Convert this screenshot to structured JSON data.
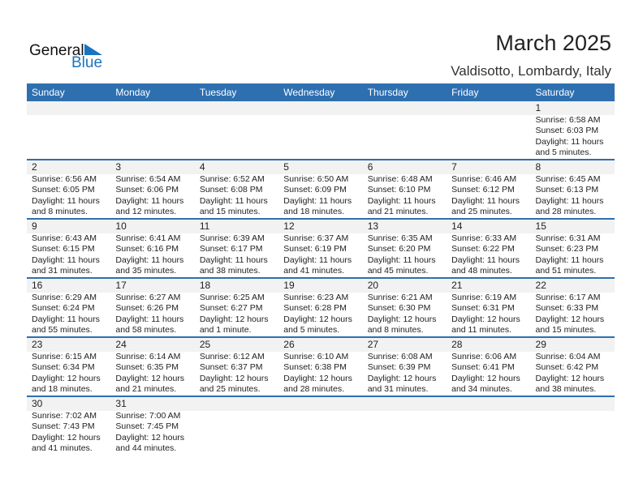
{
  "logo": {
    "text1": "General",
    "text2": "Blue"
  },
  "title": "March 2025",
  "location": "Valdisotto, Lombardy, Italy",
  "colors": {
    "header": "#2e6fb0",
    "band": "#f2f2f2"
  },
  "days": [
    "Sunday",
    "Monday",
    "Tuesday",
    "Wednesday",
    "Thursday",
    "Friday",
    "Saturday"
  ],
  "weeks": [
    [
      null,
      null,
      null,
      null,
      null,
      null,
      {
        "day": "1",
        "sunrise": "Sunrise: 6:58 AM",
        "sunset": "Sunset: 6:03 PM",
        "daylight1": "Daylight: 11 hours",
        "daylight2": "and 5 minutes."
      }
    ],
    [
      {
        "day": "2",
        "sunrise": "Sunrise: 6:56 AM",
        "sunset": "Sunset: 6:05 PM",
        "daylight1": "Daylight: 11 hours",
        "daylight2": "and 8 minutes."
      },
      {
        "day": "3",
        "sunrise": "Sunrise: 6:54 AM",
        "sunset": "Sunset: 6:06 PM",
        "daylight1": "Daylight: 11 hours",
        "daylight2": "and 12 minutes."
      },
      {
        "day": "4",
        "sunrise": "Sunrise: 6:52 AM",
        "sunset": "Sunset: 6:08 PM",
        "daylight1": "Daylight: 11 hours",
        "daylight2": "and 15 minutes."
      },
      {
        "day": "5",
        "sunrise": "Sunrise: 6:50 AM",
        "sunset": "Sunset: 6:09 PM",
        "daylight1": "Daylight: 11 hours",
        "daylight2": "and 18 minutes."
      },
      {
        "day": "6",
        "sunrise": "Sunrise: 6:48 AM",
        "sunset": "Sunset: 6:10 PM",
        "daylight1": "Daylight: 11 hours",
        "daylight2": "and 21 minutes."
      },
      {
        "day": "7",
        "sunrise": "Sunrise: 6:46 AM",
        "sunset": "Sunset: 6:12 PM",
        "daylight1": "Daylight: 11 hours",
        "daylight2": "and 25 minutes."
      },
      {
        "day": "8",
        "sunrise": "Sunrise: 6:45 AM",
        "sunset": "Sunset: 6:13 PM",
        "daylight1": "Daylight: 11 hours",
        "daylight2": "and 28 minutes."
      }
    ],
    [
      {
        "day": "9",
        "sunrise": "Sunrise: 6:43 AM",
        "sunset": "Sunset: 6:15 PM",
        "daylight1": "Daylight: 11 hours",
        "daylight2": "and 31 minutes."
      },
      {
        "day": "10",
        "sunrise": "Sunrise: 6:41 AM",
        "sunset": "Sunset: 6:16 PM",
        "daylight1": "Daylight: 11 hours",
        "daylight2": "and 35 minutes."
      },
      {
        "day": "11",
        "sunrise": "Sunrise: 6:39 AM",
        "sunset": "Sunset: 6:17 PM",
        "daylight1": "Daylight: 11 hours",
        "daylight2": "and 38 minutes."
      },
      {
        "day": "12",
        "sunrise": "Sunrise: 6:37 AM",
        "sunset": "Sunset: 6:19 PM",
        "daylight1": "Daylight: 11 hours",
        "daylight2": "and 41 minutes."
      },
      {
        "day": "13",
        "sunrise": "Sunrise: 6:35 AM",
        "sunset": "Sunset: 6:20 PM",
        "daylight1": "Daylight: 11 hours",
        "daylight2": "and 45 minutes."
      },
      {
        "day": "14",
        "sunrise": "Sunrise: 6:33 AM",
        "sunset": "Sunset: 6:22 PM",
        "daylight1": "Daylight: 11 hours",
        "daylight2": "and 48 minutes."
      },
      {
        "day": "15",
        "sunrise": "Sunrise: 6:31 AM",
        "sunset": "Sunset: 6:23 PM",
        "daylight1": "Daylight: 11 hours",
        "daylight2": "and 51 minutes."
      }
    ],
    [
      {
        "day": "16",
        "sunrise": "Sunrise: 6:29 AM",
        "sunset": "Sunset: 6:24 PM",
        "daylight1": "Daylight: 11 hours",
        "daylight2": "and 55 minutes."
      },
      {
        "day": "17",
        "sunrise": "Sunrise: 6:27 AM",
        "sunset": "Sunset: 6:26 PM",
        "daylight1": "Daylight: 11 hours",
        "daylight2": "and 58 minutes."
      },
      {
        "day": "18",
        "sunrise": "Sunrise: 6:25 AM",
        "sunset": "Sunset: 6:27 PM",
        "daylight1": "Daylight: 12 hours",
        "daylight2": "and 1 minute."
      },
      {
        "day": "19",
        "sunrise": "Sunrise: 6:23 AM",
        "sunset": "Sunset: 6:28 PM",
        "daylight1": "Daylight: 12 hours",
        "daylight2": "and 5 minutes."
      },
      {
        "day": "20",
        "sunrise": "Sunrise: 6:21 AM",
        "sunset": "Sunset: 6:30 PM",
        "daylight1": "Daylight: 12 hours",
        "daylight2": "and 8 minutes."
      },
      {
        "day": "21",
        "sunrise": "Sunrise: 6:19 AM",
        "sunset": "Sunset: 6:31 PM",
        "daylight1": "Daylight: 12 hours",
        "daylight2": "and 11 minutes."
      },
      {
        "day": "22",
        "sunrise": "Sunrise: 6:17 AM",
        "sunset": "Sunset: 6:33 PM",
        "daylight1": "Daylight: 12 hours",
        "daylight2": "and 15 minutes."
      }
    ],
    [
      {
        "day": "23",
        "sunrise": "Sunrise: 6:15 AM",
        "sunset": "Sunset: 6:34 PM",
        "daylight1": "Daylight: 12 hours",
        "daylight2": "and 18 minutes."
      },
      {
        "day": "24",
        "sunrise": "Sunrise: 6:14 AM",
        "sunset": "Sunset: 6:35 PM",
        "daylight1": "Daylight: 12 hours",
        "daylight2": "and 21 minutes."
      },
      {
        "day": "25",
        "sunrise": "Sunrise: 6:12 AM",
        "sunset": "Sunset: 6:37 PM",
        "daylight1": "Daylight: 12 hours",
        "daylight2": "and 25 minutes."
      },
      {
        "day": "26",
        "sunrise": "Sunrise: 6:10 AM",
        "sunset": "Sunset: 6:38 PM",
        "daylight1": "Daylight: 12 hours",
        "daylight2": "and 28 minutes."
      },
      {
        "day": "27",
        "sunrise": "Sunrise: 6:08 AM",
        "sunset": "Sunset: 6:39 PM",
        "daylight1": "Daylight: 12 hours",
        "daylight2": "and 31 minutes."
      },
      {
        "day": "28",
        "sunrise": "Sunrise: 6:06 AM",
        "sunset": "Sunset: 6:41 PM",
        "daylight1": "Daylight: 12 hours",
        "daylight2": "and 34 minutes."
      },
      {
        "day": "29",
        "sunrise": "Sunrise: 6:04 AM",
        "sunset": "Sunset: 6:42 PM",
        "daylight1": "Daylight: 12 hours",
        "daylight2": "and 38 minutes."
      }
    ],
    [
      {
        "day": "30",
        "sunrise": "Sunrise: 7:02 AM",
        "sunset": "Sunset: 7:43 PM",
        "daylight1": "Daylight: 12 hours",
        "daylight2": "and 41 minutes."
      },
      {
        "day": "31",
        "sunrise": "Sunrise: 7:00 AM",
        "sunset": "Sunset: 7:45 PM",
        "daylight1": "Daylight: 12 hours",
        "daylight2": "and 44 minutes."
      },
      null,
      null,
      null,
      null,
      null
    ]
  ]
}
